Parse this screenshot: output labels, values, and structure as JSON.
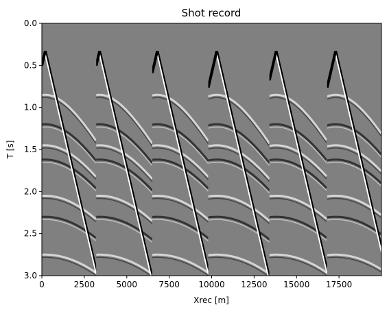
{
  "chart_data": {
    "type": "heatmap",
    "title": "Shot record",
    "xlabel": "Xrec [m]",
    "ylabel": "T [s]",
    "xlim": [
      0,
      20000
    ],
    "ylim": [
      3.0,
      0.0
    ],
    "y_axis_inverted": true,
    "colormap": "gray",
    "background_value": "0 (mid gray)",
    "x_tick_labels": [
      "0",
      "2500",
      "5000",
      "7500",
      "10000",
      "12500",
      "15000",
      "17500"
    ],
    "x_ticks": [
      0,
      2500,
      5000,
      7500,
      10000,
      12500,
      15000,
      17500
    ],
    "y_tick_labels": [
      "0.0",
      "0.5",
      "1.0",
      "1.5",
      "2.0",
      "2.5",
      "3.0"
    ],
    "y_ticks": [
      0.0,
      0.5,
      1.0,
      1.5,
      2.0,
      2.5,
      3.0
    ],
    "shot_panels": [
      {
        "x_start": 0,
        "x_end": 3200,
        "apex_x": 200,
        "first_arrival_time": 0.33
      },
      {
        "x_start": 3200,
        "x_end": 6500,
        "apex_x": 3400,
        "first_arrival_time": 0.33
      },
      {
        "x_start": 6500,
        "x_end": 9800,
        "apex_x": 6800,
        "first_arrival_time": 0.33
      },
      {
        "x_start": 9800,
        "x_end": 13400,
        "apex_x": 10300,
        "first_arrival_time": 0.33
      },
      {
        "x_start": 13400,
        "x_end": 16800,
        "apex_x": 13800,
        "first_arrival_time": 0.33
      },
      {
        "x_start": 16800,
        "x_end": 20000,
        "apex_x": 17300,
        "first_arrival_time": 0.33
      }
    ],
    "reflections_t0": [
      0.85,
      1.2,
      1.45,
      1.62,
      2.05,
      2.3,
      2.75
    ]
  }
}
